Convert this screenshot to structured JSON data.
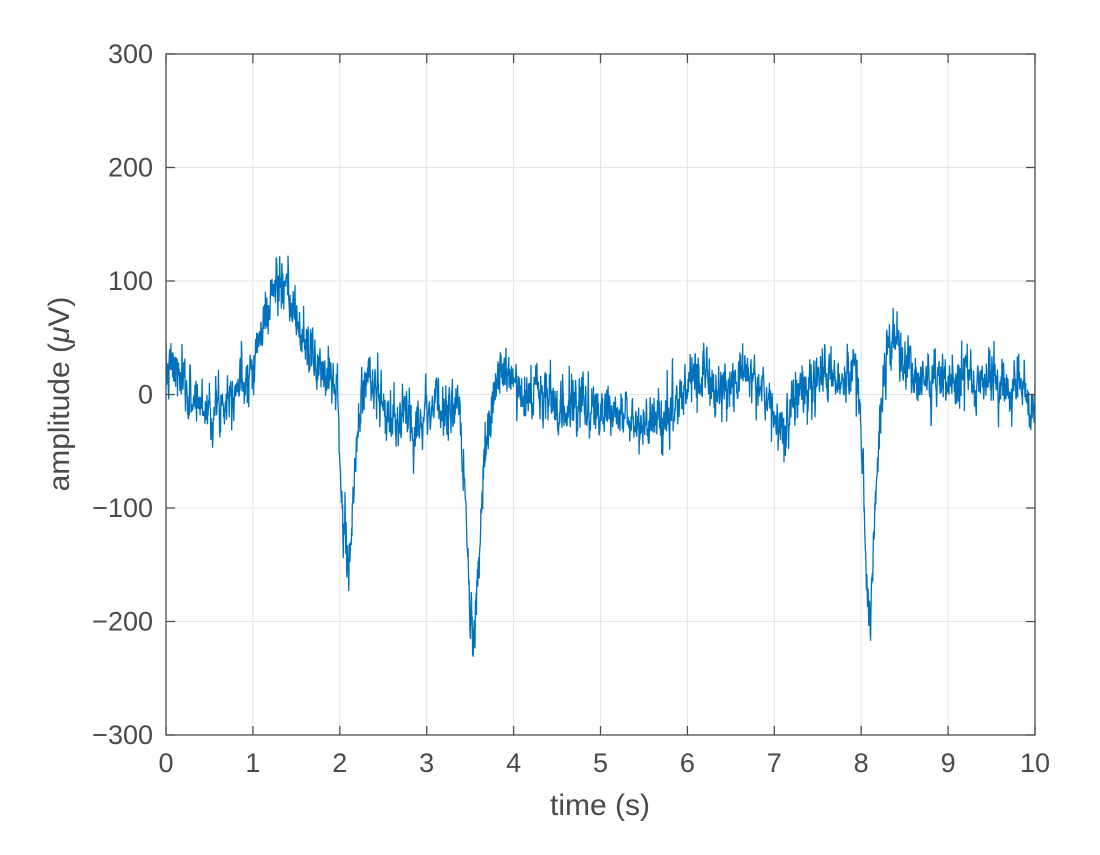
{
  "figure": {
    "background": "#ffffff"
  },
  "chart_data": {
    "type": "line",
    "title": "",
    "xlabel": "time (s)",
    "ylabel": "amplitude (μV)",
    "ylabel_parts": {
      "pre": "amplitude (",
      "mu": "μ",
      "post": "V)"
    },
    "xlim": [
      0,
      10
    ],
    "ylim": [
      -300,
      300
    ],
    "x_ticks": [
      0,
      1,
      2,
      3,
      4,
      5,
      6,
      7,
      8,
      9,
      10
    ],
    "x_tick_labels": [
      "0",
      "1",
      "2",
      "3",
      "4",
      "5",
      "6",
      "7",
      "8",
      "9",
      "10"
    ],
    "y_ticks": [
      -300,
      -200,
      -100,
      0,
      100,
      200,
      300
    ],
    "y_tick_labels": [
      "−300",
      "−200",
      "−100",
      "0",
      "100",
      "200",
      "300"
    ],
    "grid": true,
    "legend": null,
    "colors": {
      "line": "#0072BD",
      "axis": "#4d4d4d",
      "text": "#4a4a4a",
      "grid": "#e4e4e4",
      "background": "#ffffff"
    },
    "features": [
      {
        "t": 1.3,
        "value": 125,
        "type": "positive-bump-peak"
      },
      {
        "t": 2.07,
        "value": -170,
        "type": "negative-spike"
      },
      {
        "t": 3.52,
        "value": -232,
        "type": "negative-spike"
      },
      {
        "t": 8.09,
        "value": -227,
        "type": "negative-spike"
      },
      {
        "t": 8.35,
        "value": 78,
        "type": "rebound-peak"
      }
    ],
    "signal": {
      "name": "eeg-trace",
      "description": "Noisy EEG-like trace: baseline noise band about +/-30 uV around trend; slow positive bump 0.9-1.9 s; three sharp negative spikes near 2.07, 3.52 and 8.09 s",
      "dt": 0.004,
      "noise_sd": 12.5,
      "noise_ar": 0.35,
      "seed": 7,
      "trend_keypoints": [
        [
          0,
          15
        ],
        [
          0.08,
          25
        ],
        [
          0.15,
          15
        ],
        [
          0.25,
          0
        ],
        [
          0.35,
          -5
        ],
        [
          0.45,
          -10
        ],
        [
          0.55,
          -15
        ],
        [
          0.65,
          -5
        ],
        [
          0.75,
          5
        ],
        [
          0.85,
          10
        ],
        [
          0.95,
          20
        ],
        [
          1.05,
          40
        ],
        [
          1.15,
          70
        ],
        [
          1.25,
          95
        ],
        [
          1.3,
          100
        ],
        [
          1.38,
          88
        ],
        [
          1.45,
          75
        ],
        [
          1.55,
          55
        ],
        [
          1.65,
          38
        ],
        [
          1.72,
          28
        ],
        [
          1.8,
          22
        ],
        [
          1.88,
          25
        ],
        [
          1.96,
          10
        ],
        [
          2.0,
          -40
        ],
        [
          2.02,
          -90
        ],
        [
          2.04,
          -128
        ],
        [
          2.06,
          -108
        ],
        [
          2.08,
          -150
        ],
        [
          2.1,
          -168
        ],
        [
          2.14,
          -110
        ],
        [
          2.18,
          -60
        ],
        [
          2.23,
          -15
        ],
        [
          2.28,
          15
        ],
        [
          2.35,
          12
        ],
        [
          2.42,
          8
        ],
        [
          2.5,
          -15
        ],
        [
          2.6,
          -25
        ],
        [
          2.7,
          -22
        ],
        [
          2.8,
          -18
        ],
        [
          2.9,
          -25
        ],
        [
          3.0,
          -12
        ],
        [
          3.1,
          -8
        ],
        [
          3.2,
          -15
        ],
        [
          3.3,
          -8
        ],
        [
          3.38,
          -25
        ],
        [
          3.43,
          -80
        ],
        [
          3.47,
          -140
        ],
        [
          3.5,
          -190
        ],
        [
          3.53,
          -225
        ],
        [
          3.57,
          -185
        ],
        [
          3.62,
          -125
        ],
        [
          3.67,
          -60
        ],
        [
          3.72,
          -20
        ],
        [
          3.78,
          5
        ],
        [
          3.85,
          18
        ],
        [
          3.95,
          20
        ],
        [
          4.05,
          10
        ],
        [
          4.15,
          5
        ],
        [
          4.25,
          0
        ],
        [
          4.35,
          -5
        ],
        [
          4.45,
          -8
        ],
        [
          4.55,
          -12
        ],
        [
          4.65,
          -8
        ],
        [
          4.75,
          -5
        ],
        [
          4.85,
          -10
        ],
        [
          4.95,
          -15
        ],
        [
          5.05,
          -10
        ],
        [
          5.15,
          -15
        ],
        [
          5.25,
          -18
        ],
        [
          5.35,
          -22
        ],
        [
          5.45,
          -25
        ],
        [
          5.55,
          -22
        ],
        [
          5.65,
          -18
        ],
        [
          5.75,
          -20
        ],
        [
          5.85,
          -15
        ],
        [
          5.92,
          -8
        ],
        [
          6.0,
          5
        ],
        [
          6.08,
          15
        ],
        [
          6.15,
          20
        ],
        [
          6.25,
          8
        ],
        [
          6.32,
          2
        ],
        [
          6.4,
          8
        ],
        [
          6.5,
          12
        ],
        [
          6.6,
          18
        ],
        [
          6.7,
          20
        ],
        [
          6.78,
          12
        ],
        [
          6.88,
          5
        ],
        [
          6.95,
          -5
        ],
        [
          7.02,
          -18
        ],
        [
          7.08,
          -30
        ],
        [
          7.14,
          -28
        ],
        [
          7.2,
          -8
        ],
        [
          7.3,
          8
        ],
        [
          7.4,
          14
        ],
        [
          7.5,
          18
        ],
        [
          7.6,
          14
        ],
        [
          7.7,
          18
        ],
        [
          7.8,
          15
        ],
        [
          7.9,
          14
        ],
        [
          7.97,
          5
        ],
        [
          8.0,
          -30
        ],
        [
          8.03,
          -90
        ],
        [
          8.06,
          -150
        ],
        [
          8.09,
          -215
        ],
        [
          8.12,
          -170
        ],
        [
          8.16,
          -105
        ],
        [
          8.2,
          -45
        ],
        [
          8.25,
          5
        ],
        [
          8.3,
          45
        ],
        [
          8.35,
          55
        ],
        [
          8.42,
          40
        ],
        [
          8.5,
          28
        ],
        [
          8.6,
          18
        ],
        [
          8.7,
          12
        ],
        [
          8.8,
          10
        ],
        [
          8.9,
          14
        ],
        [
          9.0,
          12
        ],
        [
          9.1,
          8
        ],
        [
          9.2,
          14
        ],
        [
          9.3,
          10
        ],
        [
          9.4,
          12
        ],
        [
          9.5,
          15
        ],
        [
          9.6,
          8
        ],
        [
          9.7,
          5
        ],
        [
          9.8,
          10
        ],
        [
          9.88,
          5
        ],
        [
          9.94,
          -18
        ],
        [
          10,
          -5
        ]
      ]
    }
  }
}
